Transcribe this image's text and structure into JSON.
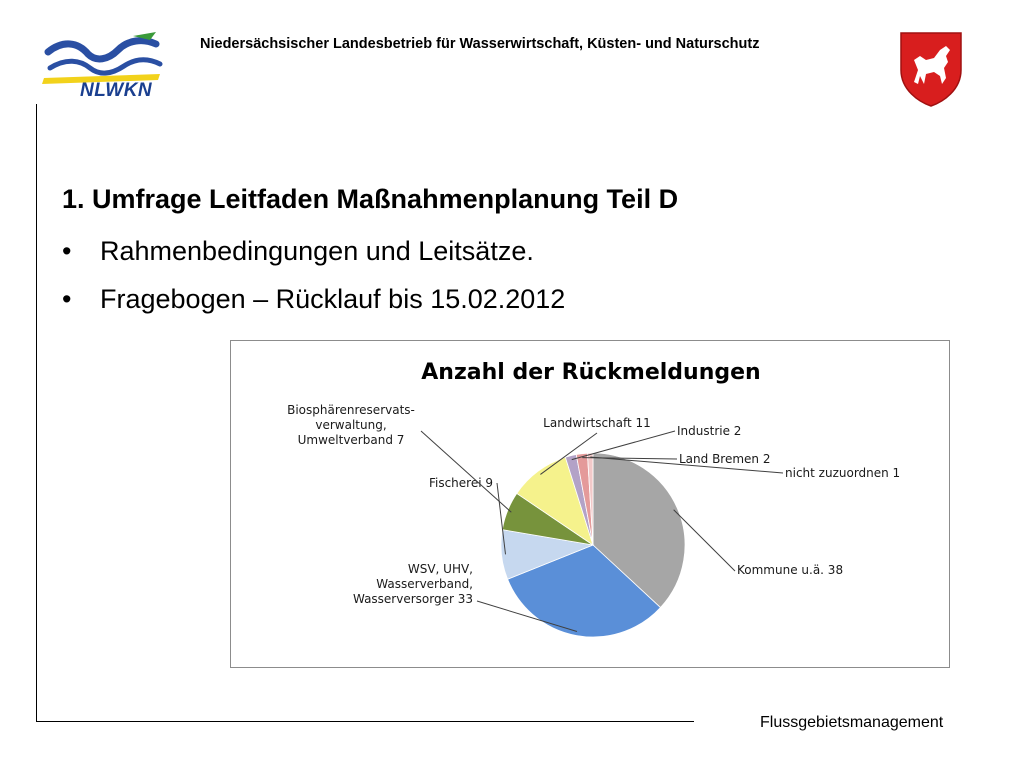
{
  "header": {
    "logo_text": "NLWKN",
    "org_name": "Niedersächsischer Landesbetrieb für Wasserwirtschaft, Küsten- und Naturschutz"
  },
  "content": {
    "heading": "1. Umfrage Leitfaden Maßnahmenplanung Teil D",
    "bullets": [
      "Rahmenbedingungen und Leitsätze.",
      "Fragebogen – Rücklauf bis 15.02.2012"
    ],
    "bullet_symbol": "•"
  },
  "footer": {
    "text": "Flussgebietsmanagement"
  },
  "chart_data": {
    "type": "pie",
    "title": "Anzahl der Rückmeldungen",
    "slices": [
      {
        "label": [
          "Kommune u.ä. 38"
        ],
        "value": 38,
        "color": "#a6a6a6"
      },
      {
        "label": [
          "WSV, UHV,",
          "Wasserverband,",
          "Wasserversorger 33"
        ],
        "value": 33,
        "color": "#5a8fd8"
      },
      {
        "label": [
          "Fischerei 9"
        ],
        "value": 9,
        "color": "#c6d8ef"
      },
      {
        "label": [
          "Biosphärenreservats-",
          "verwaltung,",
          "Umweltverband 7"
        ],
        "value": 7,
        "color": "#77933c"
      },
      {
        "label": [
          "Landwirtschaft 11"
        ],
        "value": 11,
        "color": "#f5f28c"
      },
      {
        "label": [
          "Industrie 2"
        ],
        "value": 2,
        "color": "#b3a2c7"
      },
      {
        "label": [
          "Land Bremen 2"
        ],
        "value": 2,
        "color": "#e49a9a"
      },
      {
        "label": [
          "nicht zuzuordnen 1"
        ],
        "value": 1,
        "color": "#f2c9c9"
      }
    ],
    "legend": "none"
  }
}
